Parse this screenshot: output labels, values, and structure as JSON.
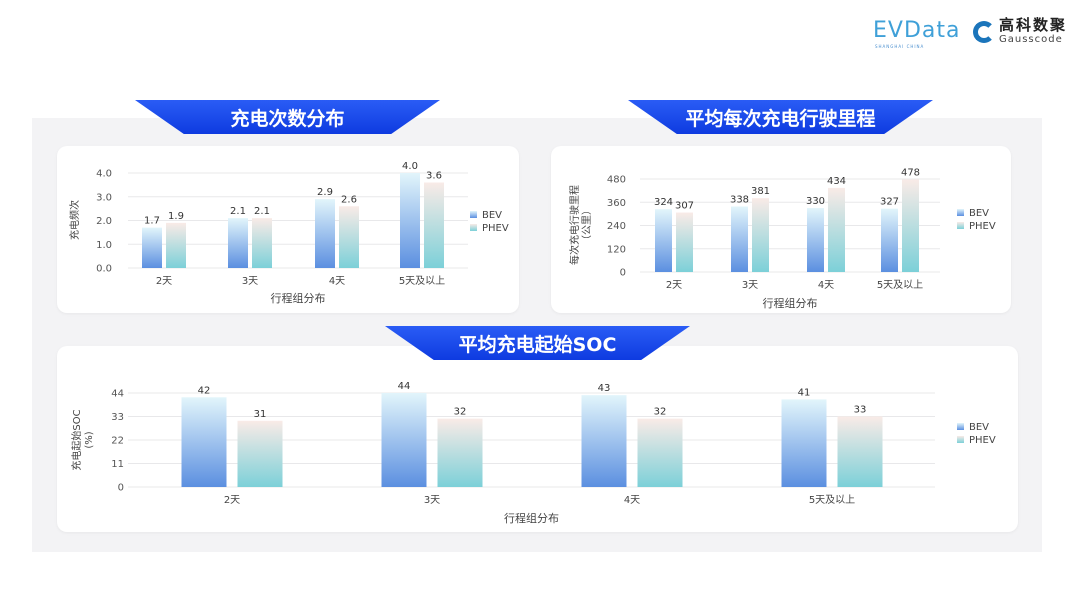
{
  "logos": {
    "evdata": "EVData",
    "evdata_sub": "SHANGHAI CHINA",
    "gauss_cn": "高科数聚",
    "gauss_en": "Gausscode"
  },
  "colors": {
    "banner": "#1a48ea",
    "bev_top": "#e2f5fb",
    "bev_bottom": "#5b8fe0",
    "phev_top": "#f9ebe7",
    "phev_bottom": "#7cd0d8"
  },
  "chart_data": [
    {
      "type": "bar",
      "title": "充电次数分布",
      "categories": [
        "2天",
        "3天",
        "4天",
        "5天及以上"
      ],
      "series": [
        {
          "name": "BEV",
          "values": [
            1.7,
            2.1,
            2.9,
            4.0
          ]
        },
        {
          "name": "PHEV",
          "values": [
            1.9,
            2.1,
            2.6,
            3.6
          ]
        }
      ],
      "value_labels": [
        [
          "1.7",
          "2.1",
          "2.9",
          "4.0"
        ],
        [
          "1.9",
          "2.1",
          "2.6",
          "3.6"
        ]
      ],
      "xlabel": "行程组分布",
      "ylabel": "充电频次",
      "ylim": [
        0,
        4.0
      ],
      "yticks": [
        "0.0",
        "1.0",
        "2.0",
        "3.0",
        "4.0"
      ],
      "grid": true,
      "legend": "right"
    },
    {
      "type": "bar",
      "title": "平均每次充电行驶里程",
      "categories": [
        "2天",
        "3天",
        "4天",
        "5天及以上"
      ],
      "series": [
        {
          "name": "BEV",
          "values": [
            324,
            338,
            330,
            327
          ]
        },
        {
          "name": "PHEV",
          "values": [
            307,
            381,
            434,
            478
          ]
        }
      ],
      "value_labels": [
        [
          "324",
          "338",
          "330",
          "327"
        ],
        [
          "307",
          "381",
          "434",
          "478"
        ]
      ],
      "xlabel": "行程组分布",
      "ylabel": "每次充电行驶里程",
      "ylabel2": "（公里）",
      "ylim": [
        0,
        480
      ],
      "yticks": [
        "0",
        "120",
        "240",
        "360",
        "480"
      ],
      "grid": true,
      "legend": "right"
    },
    {
      "type": "bar",
      "title": "平均充电起始SOC",
      "categories": [
        "2天",
        "3天",
        "4天",
        "5天及以上"
      ],
      "series": [
        {
          "name": "BEV",
          "values": [
            42,
            44,
            43,
            41
          ]
        },
        {
          "name": "PHEV",
          "values": [
            31,
            32,
            32,
            33
          ]
        }
      ],
      "value_labels": [
        [
          "42",
          "44",
          "43",
          "41"
        ],
        [
          "31",
          "32",
          "32",
          "33"
        ]
      ],
      "xlabel": "行程组分布",
      "ylabel": "充电起始SOC",
      "ylabel2": "(%)",
      "ylim": [
        0,
        44
      ],
      "yticks": [
        "0",
        "11",
        "22",
        "33",
        "44"
      ],
      "grid": true,
      "legend": "right"
    }
  ]
}
